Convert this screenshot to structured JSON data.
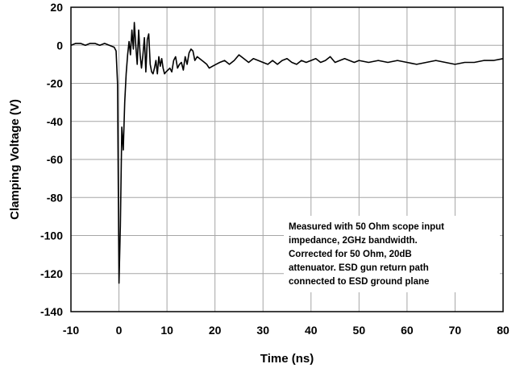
{
  "chart_data": {
    "type": "line",
    "title": "",
    "xlabel": "Time (ns)",
    "ylabel": "Clamping Voltage (V)",
    "xlim": [
      -10,
      80
    ],
    "ylim": [
      -140,
      20
    ],
    "xticks": [
      -10,
      0,
      10,
      20,
      30,
      40,
      50,
      60,
      70,
      80
    ],
    "yticks": [
      20,
      0,
      -20,
      -40,
      -60,
      -80,
      -100,
      -120,
      -140
    ],
    "grid": true,
    "legend": "none",
    "annotation": [
      "Measured with 50 Ohm scope input",
      "impedance, 2GHz bandwidth.",
      "Corrected for 50 Ohm, 20dB",
      "attenuator. ESD gun return path",
      "connected to ESD ground plane"
    ],
    "series": [
      {
        "color": "#000000",
        "x": [
          -10,
          -9,
          -8,
          -7,
          -6,
          -5,
          -4,
          -3,
          -2,
          -1,
          -0.6,
          -0.3,
          0,
          0.3,
          0.6,
          0.9,
          1.2,
          1.5,
          1.8,
          2.1,
          2.4,
          2.7,
          3.0,
          3.2,
          3.5,
          3.8,
          4.1,
          4.4,
          4.7,
          5.0,
          5.3,
          5.6,
          5.9,
          6.2,
          6.5,
          6.8,
          7.1,
          7.4,
          7.7,
          8.0,
          8.3,
          8.6,
          8.9,
          9.2,
          9.5,
          9.8,
          10.2,
          10.6,
          11.0,
          11.4,
          11.8,
          12.2,
          12.6,
          13.0,
          13.4,
          13.8,
          14.2,
          14.6,
          15.0,
          15.4,
          15.8,
          16.3,
          16.8,
          17.3,
          17.8,
          18.3,
          18.8,
          19.5,
          20.2,
          21,
          22,
          23,
          24,
          25,
          26,
          27,
          28,
          29,
          30,
          31,
          32,
          33,
          34,
          35,
          36,
          37,
          38,
          39,
          40,
          41,
          42,
          43,
          44,
          45,
          46,
          47,
          48,
          49,
          50,
          52,
          54,
          56,
          58,
          60,
          62,
          64,
          66,
          68,
          70,
          72,
          74,
          76,
          78,
          80
        ],
        "y": [
          0,
          1,
          1,
          0,
          1,
          1,
          0,
          1,
          0,
          -1,
          -3,
          -20,
          -125,
          -95,
          -43,
          -55,
          -30,
          -15,
          -5,
          2,
          -5,
          8,
          -2,
          12,
          0,
          -10,
          8,
          -5,
          -12,
          -5,
          4,
          -14,
          3,
          6,
          -10,
          -14,
          -15,
          -12,
          -8,
          -15,
          -6,
          -11,
          -7,
          -12,
          -15,
          -14,
          -13,
          -12,
          -14,
          -8,
          -6,
          -12,
          -10,
          -9,
          -13,
          -6,
          -10,
          -4,
          -2,
          -3,
          -8,
          -6,
          -7,
          -8,
          -9,
          -10,
          -12,
          -11,
          -10,
          -9,
          -8,
          -10,
          -8,
          -5,
          -7,
          -9,
          -7,
          -8,
          -9,
          -10,
          -8,
          -10,
          -8,
          -7,
          -9,
          -10,
          -8,
          -9,
          -8,
          -7,
          -9,
          -8,
          -6,
          -9,
          -8,
          -7,
          -8,
          -9,
          -8,
          -9,
          -8,
          -9,
          -8,
          -9,
          -10,
          -9,
          -8,
          -9,
          -10,
          -9,
          -9,
          -8,
          -8,
          -7
        ]
      }
    ]
  }
}
